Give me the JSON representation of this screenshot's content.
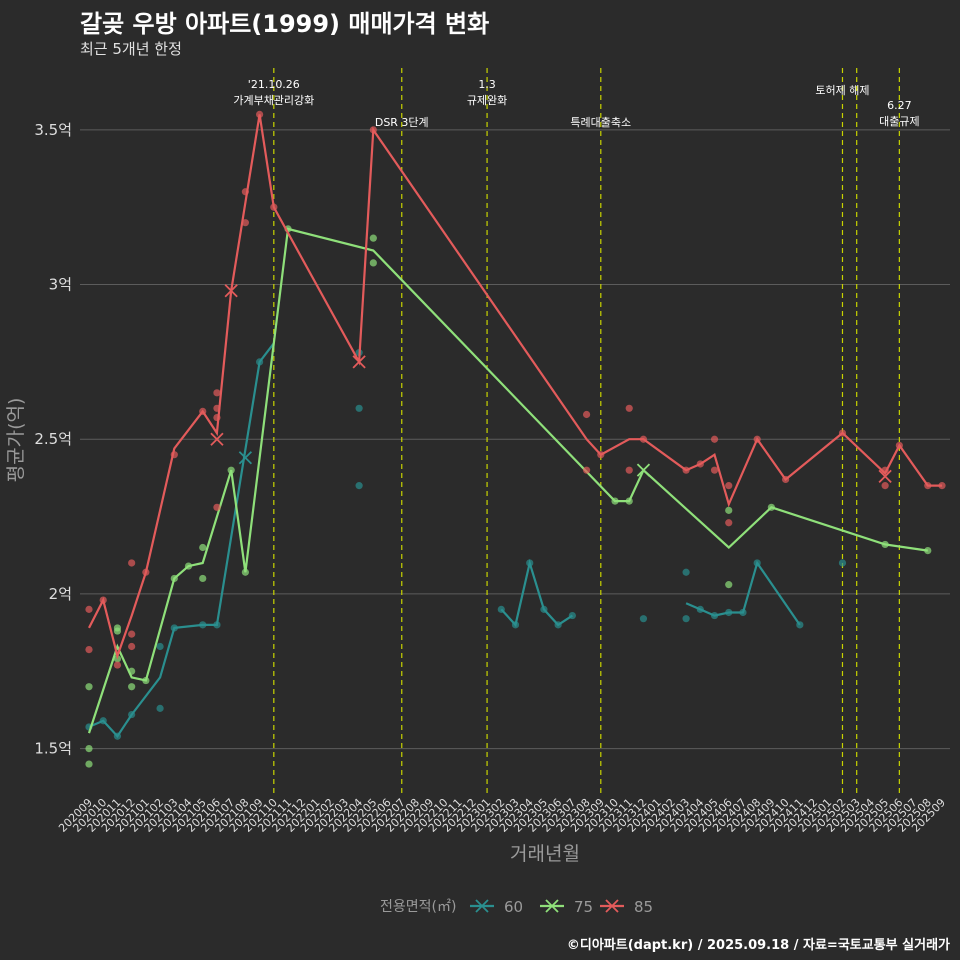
{
  "title": "갈곶 우방 아파트(1999) 매매가격 변화",
  "subtitle": "최근 5개년 한정",
  "credit": "©디아파트(dapt.kr) / 2025.09.18 / 자료=국토교통부 실거래가",
  "colors": {
    "background": "#2b2b2b",
    "grid": "#5c5c5c",
    "event_line": "#c8d400",
    "axis_text": "#dddddd",
    "label_text": "#9a9a9a"
  },
  "chart_data": {
    "type": "line",
    "xlabel": "거래년월",
    "ylabel": "평균가(억)",
    "ylim": [
      1.35,
      3.7
    ],
    "y_ticks": [
      1.5,
      2.0,
      2.5,
      3.0,
      3.5
    ],
    "y_tick_labels": [
      "1.5억",
      "2억",
      "2.5억",
      "3억",
      "3.5억"
    ],
    "categories": [
      "202009",
      "202010",
      "202011",
      "202012",
      "202101",
      "202102",
      "202103",
      "202104",
      "202105",
      "202106",
      "202107",
      "202108",
      "202109",
      "202110",
      "202111",
      "202112",
      "202201",
      "202202",
      "202203",
      "202204",
      "202205",
      "202206",
      "202207",
      "202208",
      "202209",
      "202210",
      "202211",
      "202212",
      "202301",
      "202302",
      "202303",
      "202304",
      "202305",
      "202306",
      "202307",
      "202308",
      "202309",
      "202310",
      "202311",
      "202312",
      "202401",
      "202402",
      "202403",
      "202404",
      "202405",
      "202406",
      "202407",
      "202408",
      "202409",
      "202410",
      "202411",
      "202412",
      "202501",
      "202502",
      "202503",
      "202504",
      "202505",
      "202506",
      "202507",
      "202508",
      "202509"
    ],
    "legend_title": "전용면적(㎡)",
    "legend_position": "bottom",
    "events": [
      {
        "x": "202110",
        "label": "'21.10.26\n가계부채관리강화",
        "row": 1
      },
      {
        "x": "202207",
        "label": "DSR 3단계",
        "row": 2
      },
      {
        "x": "202301",
        "label": "1.3\n규제완화",
        "row": 1
      },
      {
        "x": "202309",
        "label": "특례대출축소",
        "row": 2
      },
      {
        "x": "202502",
        "label": "토허제 해제",
        "row": 1
      },
      {
        "x": "202503",
        "label": "",
        "row": 0
      },
      {
        "x": "202506",
        "label": "6.27\n대출규제",
        "row": 3
      }
    ],
    "series": [
      {
        "name": "60",
        "color": "#2a8f8f",
        "segments": [
          [
            [
              "202009",
              1.57
            ],
            [
              "202010",
              1.59
            ],
            [
              "202011",
              1.54
            ],
            [
              "202012",
              1.61
            ],
            [
              "202102",
              1.73
            ],
            [
              "202103",
              1.89
            ],
            [
              "202105",
              1.9
            ],
            [
              "202106",
              1.9
            ],
            [
              "202109",
              2.75
            ],
            [
              "202110",
              2.81
            ]
          ],
          [
            [
              "202302",
              1.95
            ],
            [
              "202303",
              1.9
            ],
            [
              "202304",
              2.1
            ],
            [
              "202305",
              1.95
            ],
            [
              "202306",
              1.9
            ],
            [
              "202307",
              1.93
            ]
          ],
          [
            [
              "202403",
              1.97
            ],
            [
              "202404",
              1.95
            ],
            [
              "202405",
              1.93
            ],
            [
              "202406",
              1.94
            ],
            [
              "202407",
              1.94
            ],
            [
              "202408",
              2.1
            ],
            [
              "202411",
              1.9
            ]
          ]
        ],
        "points": [
          [
            "202009",
            1.57
          ],
          [
            "202010",
            1.59
          ],
          [
            "202011",
            1.54
          ],
          [
            "202012",
            1.61
          ],
          [
            "202102",
            1.83
          ],
          [
            "202102",
            1.63
          ],
          [
            "202103",
            1.89
          ],
          [
            "202105",
            1.9
          ],
          [
            "202106",
            1.9
          ],
          [
            "202109",
            2.75
          ],
          [
            "202204",
            2.78
          ],
          [
            "202204",
            2.6
          ],
          [
            "202204",
            2.35
          ],
          [
            "202302",
            1.95
          ],
          [
            "202303",
            1.9
          ],
          [
            "202304",
            2.1
          ],
          [
            "202305",
            1.95
          ],
          [
            "202306",
            1.9
          ],
          [
            "202307",
            1.93
          ],
          [
            "202312",
            1.92
          ],
          [
            "202403",
            2.07
          ],
          [
            "202403",
            1.92
          ],
          [
            "202404",
            1.95
          ],
          [
            "202405",
            1.93
          ],
          [
            "202406",
            1.94
          ],
          [
            "202407",
            1.94
          ],
          [
            "202408",
            2.1
          ],
          [
            "202411",
            1.9
          ],
          [
            "202502",
            2.1
          ]
        ],
        "crosses": [
          [
            "202108",
            2.44
          ]
        ]
      },
      {
        "name": "75",
        "color": "#8fe07a",
        "segments": [
          [
            [
              "202009",
              1.55
            ],
            [
              "202011",
              1.83
            ],
            [
              "202012",
              1.73
            ],
            [
              "202101",
              1.72
            ],
            [
              "202103",
              2.05
            ],
            [
              "202104",
              2.09
            ],
            [
              "202105",
              2.1
            ],
            [
              "202107",
              2.4
            ],
            [
              "202108",
              2.07
            ],
            [
              "202111",
              3.18
            ],
            [
              "202205",
              3.11
            ],
            [
              "202310",
              2.3
            ],
            [
              "202311",
              2.3
            ],
            [
              "202312",
              2.4
            ],
            [
              "202406",
              2.15
            ],
            [
              "202409",
              2.28
            ],
            [
              "202505",
              2.16
            ],
            [
              "202508",
              2.14
            ]
          ]
        ],
        "points": [
          [
            "202009",
            1.7
          ],
          [
            "202009",
            1.5
          ],
          [
            "202009",
            1.45
          ],
          [
            "202011",
            1.89
          ],
          [
            "202011",
            1.88
          ],
          [
            "202011",
            1.79
          ],
          [
            "202012",
            1.75
          ],
          [
            "202012",
            1.7
          ],
          [
            "202101",
            1.72
          ],
          [
            "202103",
            2.05
          ],
          [
            "202104",
            2.09
          ],
          [
            "202105",
            2.15
          ],
          [
            "202105",
            2.05
          ],
          [
            "202107",
            2.4
          ],
          [
            "202108",
            2.07
          ],
          [
            "202111",
            3.18
          ],
          [
            "202205",
            3.15
          ],
          [
            "202205",
            3.07
          ],
          [
            "202310",
            2.3
          ],
          [
            "202311",
            2.3
          ],
          [
            "202406",
            2.27
          ],
          [
            "202406",
            2.03
          ],
          [
            "202409",
            2.28
          ],
          [
            "202505",
            2.16
          ],
          [
            "202508",
            2.14
          ]
        ],
        "crosses": [
          [
            "202312",
            2.4
          ]
        ]
      },
      {
        "name": "85",
        "color": "#e35b5b",
        "segments": [
          [
            [
              "202009",
              1.89
            ],
            [
              "202010",
              1.98
            ],
            [
              "202011",
              1.8
            ],
            [
              "202012",
              1.93
            ],
            [
              "202101",
              2.07
            ],
            [
              "202103",
              2.47
            ],
            [
              "202105",
              2.59
            ],
            [
              "202106",
              2.52
            ],
            [
              "202107",
              2.98
            ],
            [
              "202109",
              3.55
            ],
            [
              "202110",
              3.25
            ],
            [
              "202204",
              2.75
            ],
            [
              "202205",
              3.5
            ],
            [
              "202308",
              2.5
            ],
            [
              "202309",
              2.45
            ],
            [
              "202311",
              2.5
            ],
            [
              "202312",
              2.5
            ],
            [
              "202403",
              2.4
            ],
            [
              "202404",
              2.42
            ],
            [
              "202405",
              2.45
            ],
            [
              "202406",
              2.29
            ],
            [
              "202408",
              2.5
            ],
            [
              "202410",
              2.37
            ],
            [
              "202502",
              2.52
            ],
            [
              "202505",
              2.39
            ],
            [
              "202506",
              2.48
            ],
            [
              "202508",
              2.35
            ],
            [
              "202509",
              2.35
            ]
          ]
        ],
        "points": [
          [
            "202009",
            1.95
          ],
          [
            "202009",
            1.82
          ],
          [
            "202010",
            1.98
          ],
          [
            "202011",
            1.77
          ],
          [
            "202012",
            2.1
          ],
          [
            "202012",
            1.87
          ],
          [
            "202012",
            1.83
          ],
          [
            "202101",
            2.07
          ],
          [
            "202103",
            2.45
          ],
          [
            "202105",
            2.59
          ],
          [
            "202106",
            2.65
          ],
          [
            "202106",
            2.6
          ],
          [
            "202106",
            2.57
          ],
          [
            "202106",
            2.28
          ],
          [
            "202108",
            3.3
          ],
          [
            "202108",
            3.2
          ],
          [
            "202109",
            3.55
          ],
          [
            "202110",
            3.25
          ],
          [
            "202205",
            3.5
          ],
          [
            "202308",
            2.58
          ],
          [
            "202308",
            2.4
          ],
          [
            "202309",
            2.45
          ],
          [
            "202311",
            2.6
          ],
          [
            "202311",
            2.4
          ],
          [
            "202312",
            2.5
          ],
          [
            "202403",
            2.4
          ],
          [
            "202404",
            2.42
          ],
          [
            "202405",
            2.5
          ],
          [
            "202405",
            2.4
          ],
          [
            "202406",
            2.35
          ],
          [
            "202406",
            2.23
          ],
          [
            "202408",
            2.5
          ],
          [
            "202410",
            2.37
          ],
          [
            "202502",
            2.52
          ],
          [
            "202505",
            2.4
          ],
          [
            "202505",
            2.35
          ],
          [
            "202506",
            2.48
          ],
          [
            "202508",
            2.35
          ],
          [
            "202509",
            2.35
          ]
        ],
        "crosses": [
          [
            "202106",
            2.5
          ],
          [
            "202107",
            2.98
          ],
          [
            "202204",
            2.75
          ],
          [
            "202505",
            2.38
          ]
        ]
      }
    ]
  }
}
